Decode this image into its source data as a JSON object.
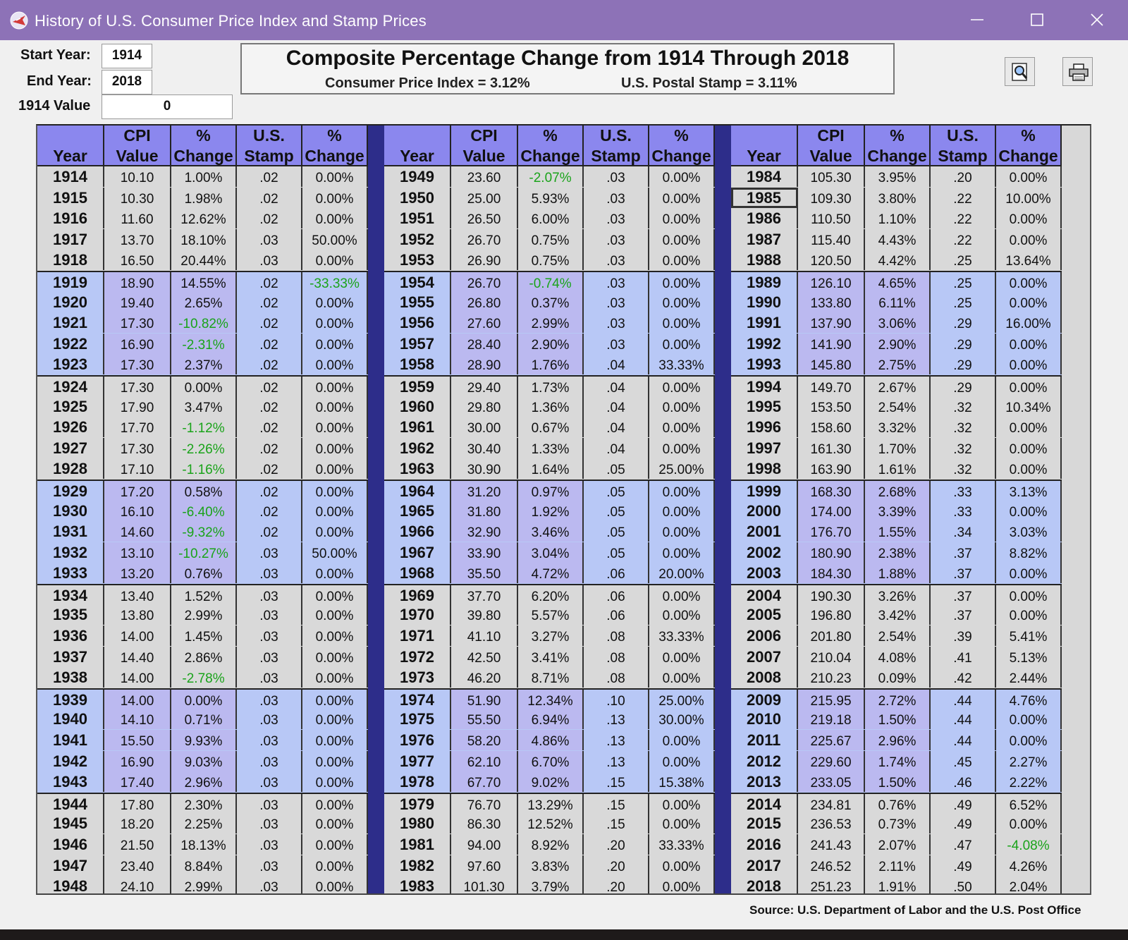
{
  "window": {
    "title": "History of U.S. Consumer Price Index and Stamp Prices"
  },
  "controls": {
    "start_year_label": "Start Year:",
    "start_year_value": "1914",
    "end_year_label": "End Year:",
    "end_year_value": "2018",
    "base_value_label": "1914 Value",
    "base_value_value": "0"
  },
  "summary": {
    "heading": "Composite Percentage Change from 1914 Through 2018",
    "cpi_text": "Consumer Price Index = 3.12%",
    "stamp_text": "U.S. Postal Stamp = 3.11%"
  },
  "toolbar": {
    "preview_icon": "print-preview-icon",
    "print_icon": "printer-icon"
  },
  "table": {
    "headers": [
      {
        "l1": "",
        "l2": "Year"
      },
      {
        "l1": "CPI",
        "l2": "Value"
      },
      {
        "l1": "%",
        "l2": "Change"
      },
      {
        "l1": "U.S.",
        "l2": "Stamp"
      },
      {
        "l1": "%",
        "l2": "Change"
      }
    ],
    "selected_year": "1985",
    "columns": [
      {
        "rows": [
          [
            "1914",
            "10.10",
            "1.00%",
            ".02",
            "0.00%"
          ],
          [
            "1915",
            "10.30",
            "1.98%",
            ".02",
            "0.00%"
          ],
          [
            "1916",
            "11.60",
            "12.62%",
            ".02",
            "0.00%"
          ],
          [
            "1917",
            "13.70",
            "18.10%",
            ".03",
            "50.00%"
          ],
          [
            "1918",
            "16.50",
            "20.44%",
            ".03",
            "0.00%"
          ],
          [
            "1919",
            "18.90",
            "14.55%",
            ".02",
            "-33.33%"
          ],
          [
            "1920",
            "19.40",
            "2.65%",
            ".02",
            "0.00%"
          ],
          [
            "1921",
            "17.30",
            "-10.82%",
            ".02",
            "0.00%"
          ],
          [
            "1922",
            "16.90",
            "-2.31%",
            ".02",
            "0.00%"
          ],
          [
            "1923",
            "17.30",
            "2.37%",
            ".02",
            "0.00%"
          ],
          [
            "1924",
            "17.30",
            "0.00%",
            ".02",
            "0.00%"
          ],
          [
            "1925",
            "17.90",
            "3.47%",
            ".02",
            "0.00%"
          ],
          [
            "1926",
            "17.70",
            "-1.12%",
            ".02",
            "0.00%"
          ],
          [
            "1927",
            "17.30",
            "-2.26%",
            ".02",
            "0.00%"
          ],
          [
            "1928",
            "17.10",
            "-1.16%",
            ".02",
            "0.00%"
          ],
          [
            "1929",
            "17.20",
            "0.58%",
            ".02",
            "0.00%"
          ],
          [
            "1930",
            "16.10",
            "-6.40%",
            ".02",
            "0.00%"
          ],
          [
            "1931",
            "14.60",
            "-9.32%",
            ".02",
            "0.00%"
          ],
          [
            "1932",
            "13.10",
            "-10.27%",
            ".03",
            "50.00%"
          ],
          [
            "1933",
            "13.20",
            "0.76%",
            ".03",
            "0.00%"
          ],
          [
            "1934",
            "13.40",
            "1.52%",
            ".03",
            "0.00%"
          ],
          [
            "1935",
            "13.80",
            "2.99%",
            ".03",
            "0.00%"
          ],
          [
            "1936",
            "14.00",
            "1.45%",
            ".03",
            "0.00%"
          ],
          [
            "1937",
            "14.40",
            "2.86%",
            ".03",
            "0.00%"
          ],
          [
            "1938",
            "14.00",
            "-2.78%",
            ".03",
            "0.00%"
          ],
          [
            "1939",
            "14.00",
            "0.00%",
            ".03",
            "0.00%"
          ],
          [
            "1940",
            "14.10",
            "0.71%",
            ".03",
            "0.00%"
          ],
          [
            "1941",
            "15.50",
            "9.93%",
            ".03",
            "0.00%"
          ],
          [
            "1942",
            "16.90",
            "9.03%",
            ".03",
            "0.00%"
          ],
          [
            "1943",
            "17.40",
            "2.96%",
            ".03",
            "0.00%"
          ],
          [
            "1944",
            "17.80",
            "2.30%",
            ".03",
            "0.00%"
          ],
          [
            "1945",
            "18.20",
            "2.25%",
            ".03",
            "0.00%"
          ],
          [
            "1946",
            "21.50",
            "18.13%",
            ".03",
            "0.00%"
          ],
          [
            "1947",
            "23.40",
            "8.84%",
            ".03",
            "0.00%"
          ],
          [
            "1948",
            "24.10",
            "2.99%",
            ".03",
            "0.00%"
          ]
        ]
      },
      {
        "rows": [
          [
            "1949",
            "23.60",
            "-2.07%",
            ".03",
            "0.00%"
          ],
          [
            "1950",
            "25.00",
            "5.93%",
            ".03",
            "0.00%"
          ],
          [
            "1951",
            "26.50",
            "6.00%",
            ".03",
            "0.00%"
          ],
          [
            "1952",
            "26.70",
            "0.75%",
            ".03",
            "0.00%"
          ],
          [
            "1953",
            "26.90",
            "0.75%",
            ".03",
            "0.00%"
          ],
          [
            "1954",
            "26.70",
            "-0.74%",
            ".03",
            "0.00%"
          ],
          [
            "1955",
            "26.80",
            "0.37%",
            ".03",
            "0.00%"
          ],
          [
            "1956",
            "27.60",
            "2.99%",
            ".03",
            "0.00%"
          ],
          [
            "1957",
            "28.40",
            "2.90%",
            ".03",
            "0.00%"
          ],
          [
            "1958",
            "28.90",
            "1.76%",
            ".04",
            "33.33%"
          ],
          [
            "1959",
            "29.40",
            "1.73%",
            ".04",
            "0.00%"
          ],
          [
            "1960",
            "29.80",
            "1.36%",
            ".04",
            "0.00%"
          ],
          [
            "1961",
            "30.00",
            "0.67%",
            ".04",
            "0.00%"
          ],
          [
            "1962",
            "30.40",
            "1.33%",
            ".04",
            "0.00%"
          ],
          [
            "1963",
            "30.90",
            "1.64%",
            ".05",
            "25.00%"
          ],
          [
            "1964",
            "31.20",
            "0.97%",
            ".05",
            "0.00%"
          ],
          [
            "1965",
            "31.80",
            "1.92%",
            ".05",
            "0.00%"
          ],
          [
            "1966",
            "32.90",
            "3.46%",
            ".05",
            "0.00%"
          ],
          [
            "1967",
            "33.90",
            "3.04%",
            ".05",
            "0.00%"
          ],
          [
            "1968",
            "35.50",
            "4.72%",
            ".06",
            "20.00%"
          ],
          [
            "1969",
            "37.70",
            "6.20%",
            ".06",
            "0.00%"
          ],
          [
            "1970",
            "39.80",
            "5.57%",
            ".06",
            "0.00%"
          ],
          [
            "1971",
            "41.10",
            "3.27%",
            ".08",
            "33.33%"
          ],
          [
            "1972",
            "42.50",
            "3.41%",
            ".08",
            "0.00%"
          ],
          [
            "1973",
            "46.20",
            "8.71%",
            ".08",
            "0.00%"
          ],
          [
            "1974",
            "51.90",
            "12.34%",
            ".10",
            "25.00%"
          ],
          [
            "1975",
            "55.50",
            "6.94%",
            ".13",
            "30.00%"
          ],
          [
            "1976",
            "58.20",
            "4.86%",
            ".13",
            "0.00%"
          ],
          [
            "1977",
            "62.10",
            "6.70%",
            ".13",
            "0.00%"
          ],
          [
            "1978",
            "67.70",
            "9.02%",
            ".15",
            "15.38%"
          ],
          [
            "1979",
            "76.70",
            "13.29%",
            ".15",
            "0.00%"
          ],
          [
            "1980",
            "86.30",
            "12.52%",
            ".15",
            "0.00%"
          ],
          [
            "1981",
            "94.00",
            "8.92%",
            ".20",
            "33.33%"
          ],
          [
            "1982",
            "97.60",
            "3.83%",
            ".20",
            "0.00%"
          ],
          [
            "1983",
            "101.30",
            "3.79%",
            ".20",
            "0.00%"
          ]
        ]
      },
      {
        "rows": [
          [
            "1984",
            "105.30",
            "3.95%",
            ".20",
            "0.00%"
          ],
          [
            "1985",
            "109.30",
            "3.80%",
            ".22",
            "10.00%"
          ],
          [
            "1986",
            "110.50",
            "1.10%",
            ".22",
            "0.00%"
          ],
          [
            "1987",
            "115.40",
            "4.43%",
            ".22",
            "0.00%"
          ],
          [
            "1988",
            "120.50",
            "4.42%",
            ".25",
            "13.64%"
          ],
          [
            "1989",
            "126.10",
            "4.65%",
            ".25",
            "0.00%"
          ],
          [
            "1990",
            "133.80",
            "6.11%",
            ".25",
            "0.00%"
          ],
          [
            "1991",
            "137.90",
            "3.06%",
            ".29",
            "16.00%"
          ],
          [
            "1992",
            "141.90",
            "2.90%",
            ".29",
            "0.00%"
          ],
          [
            "1993",
            "145.80",
            "2.75%",
            ".29",
            "0.00%"
          ],
          [
            "1994",
            "149.70",
            "2.67%",
            ".29",
            "0.00%"
          ],
          [
            "1995",
            "153.50",
            "2.54%",
            ".32",
            "10.34%"
          ],
          [
            "1996",
            "158.60",
            "3.32%",
            ".32",
            "0.00%"
          ],
          [
            "1997",
            "161.30",
            "1.70%",
            ".32",
            "0.00%"
          ],
          [
            "1998",
            "163.90",
            "1.61%",
            ".32",
            "0.00%"
          ],
          [
            "1999",
            "168.30",
            "2.68%",
            ".33",
            "3.13%"
          ],
          [
            "2000",
            "174.00",
            "3.39%",
            ".33",
            "0.00%"
          ],
          [
            "2001",
            "176.70",
            "1.55%",
            ".34",
            "3.03%"
          ],
          [
            "2002",
            "180.90",
            "2.38%",
            ".37",
            "8.82%"
          ],
          [
            "2003",
            "184.30",
            "1.88%",
            ".37",
            "0.00%"
          ],
          [
            "2004",
            "190.30",
            "3.26%",
            ".37",
            "0.00%"
          ],
          [
            "2005",
            "196.80",
            "3.42%",
            ".37",
            "0.00%"
          ],
          [
            "2006",
            "201.80",
            "2.54%",
            ".39",
            "5.41%"
          ],
          [
            "2007",
            "210.04",
            "4.08%",
            ".41",
            "5.13%"
          ],
          [
            "2008",
            "210.23",
            "0.09%",
            ".42",
            "2.44%"
          ],
          [
            "2009",
            "215.95",
            "2.72%",
            ".44",
            "4.76%"
          ],
          [
            "2010",
            "219.18",
            "1.50%",
            ".44",
            "0.00%"
          ],
          [
            "2011",
            "225.67",
            "2.96%",
            ".44",
            "0.00%"
          ],
          [
            "2012",
            "229.60",
            "1.74%",
            ".45",
            "2.27%"
          ],
          [
            "2013",
            "233.05",
            "1.50%",
            ".46",
            "2.22%"
          ],
          [
            "2014",
            "234.81",
            "0.76%",
            ".49",
            "6.52%"
          ],
          [
            "2015",
            "236.53",
            "0.73%",
            ".49",
            "0.00%"
          ],
          [
            "2016",
            "241.43",
            "2.07%",
            ".47",
            "-4.08%"
          ],
          [
            "2017",
            "246.52",
            "2.11%",
            ".49",
            "4.26%"
          ],
          [
            "2018",
            "251.23",
            "1.91%",
            ".50",
            "2.04%"
          ]
        ]
      }
    ]
  },
  "source": "Source: U.S. Department of Labor and the U.S. Post Office",
  "colors": {
    "titlebar": "#8d72b7",
    "header": "#8b87ee",
    "row_alt": "#b8c8f6",
    "separator": "#2d2d8a",
    "negative": "#1aa31a"
  }
}
